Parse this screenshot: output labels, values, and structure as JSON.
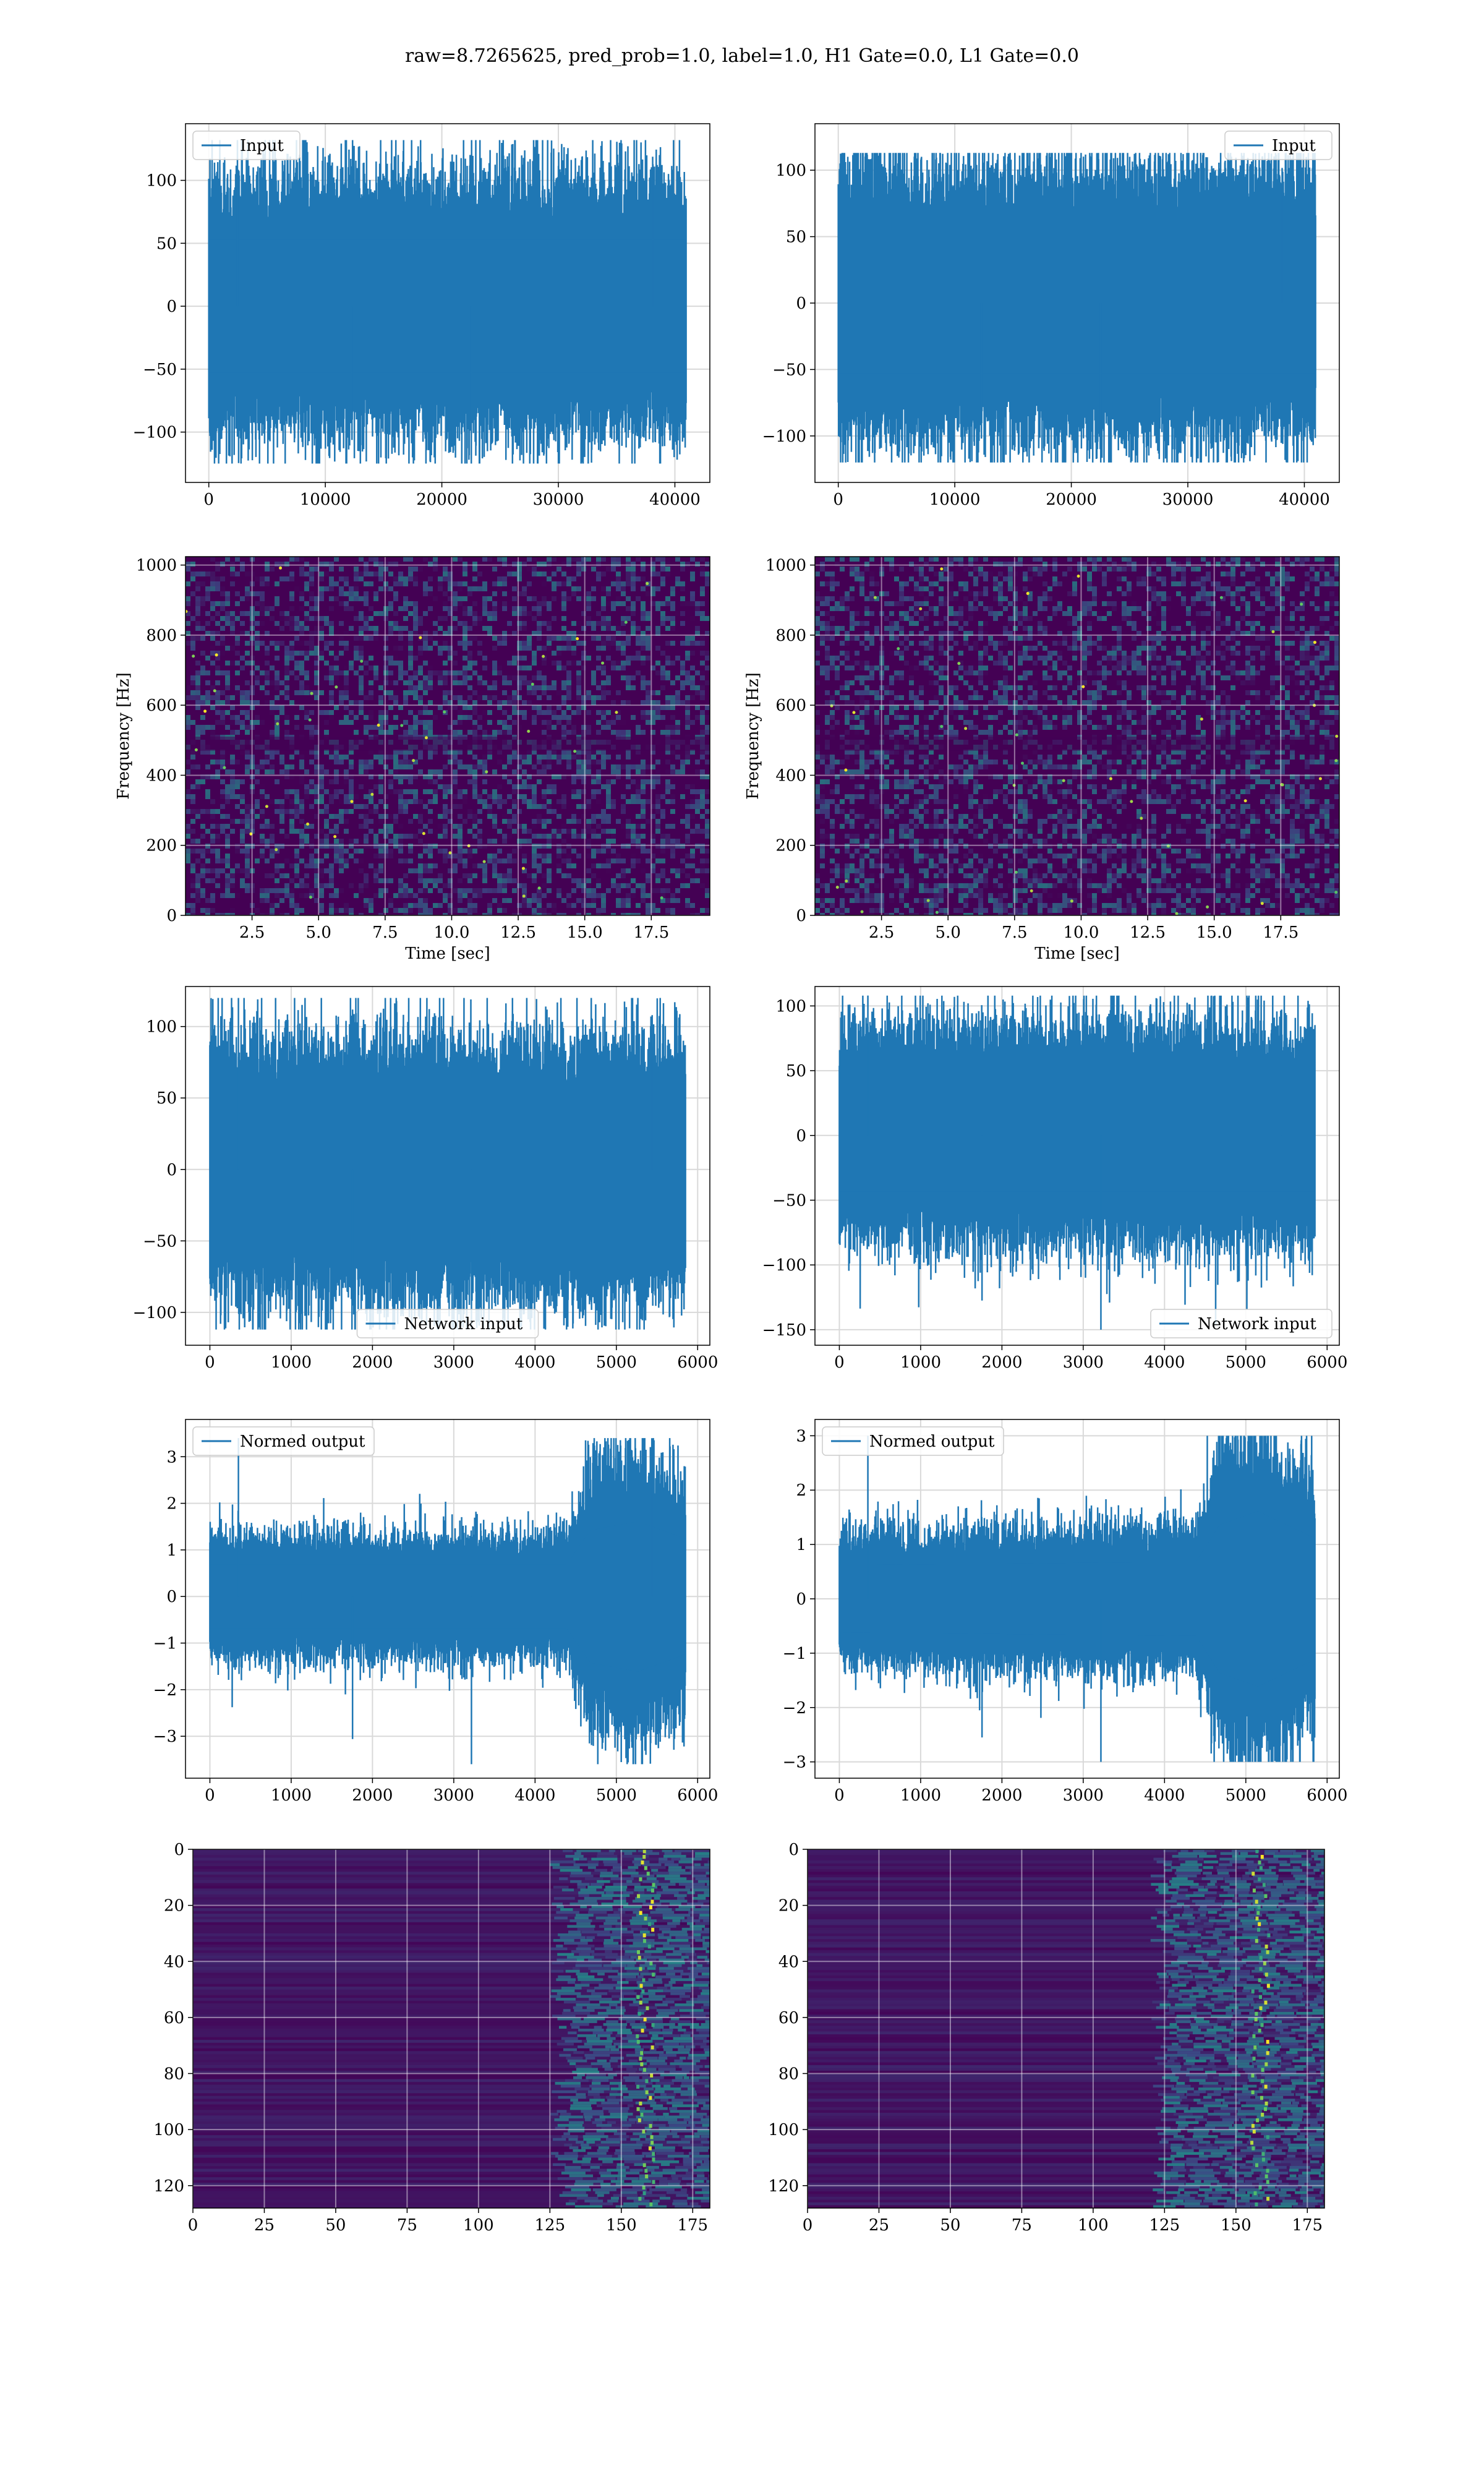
{
  "figure": {
    "title": "raw=8.7265625, pred_prob=1.0, label=1.0, H1 Gate=0.0, L1 Gate=0.0"
  },
  "colors": {
    "line": "#1f77b4",
    "grid": "#d9d9d9",
    "viridis_bg": "#440154",
    "viridis_mid": "#3b528b",
    "viridis_teal": "#21918c",
    "viridis_green": "#5ec962",
    "viridis_yellow": "#fde725"
  },
  "chart_data": [
    {
      "id": "input-h1",
      "type": "line",
      "legend": [
        "Input"
      ],
      "legend_position": "upper left",
      "xlim": [
        -2000,
        43000
      ],
      "ylim": [
        -140,
        145
      ],
      "xticks": [
        0,
        10000,
        20000,
        30000,
        40000
      ],
      "yticks": [
        -100,
        -50,
        0,
        50,
        100
      ],
      "series": [
        {
          "name": "Input",
          "x_range": [
            0,
            40960
          ],
          "amplitude_envelope": [
            [
              0,
              85
            ],
            [
              0.5,
              85
            ],
            [
              1,
              85
            ]
          ],
          "peak_min": -125,
          "peak_max": 132
        }
      ],
      "xlabel": "",
      "ylabel": "",
      "grid": true
    },
    {
      "id": "input-l1",
      "type": "line",
      "legend": [
        "Input"
      ],
      "legend_position": "upper right",
      "xlim": [
        -2000,
        43000
      ],
      "ylim": [
        -135,
        135
      ],
      "xticks": [
        0,
        10000,
        20000,
        30000,
        40000
      ],
      "yticks": [
        -100,
        -50,
        0,
        50,
        100
      ],
      "series": [
        {
          "name": "Input",
          "x_range": [
            0,
            40960
          ],
          "amplitude_envelope": [
            [
              0,
              85
            ],
            [
              0.5,
              85
            ],
            [
              1,
              85
            ]
          ],
          "peak_min": -120,
          "peak_max": 113
        }
      ],
      "xlabel": "",
      "ylabel": "",
      "grid": true
    },
    {
      "id": "spectrogram-h1",
      "type": "heatmap",
      "xlim": [
        0,
        19.7
      ],
      "ylim": [
        0,
        1024
      ],
      "xticks": [
        2.5,
        5.0,
        7.5,
        10.0,
        12.5,
        15.0,
        17.5
      ],
      "yticks": [
        0,
        200,
        400,
        600,
        800,
        1000
      ],
      "xlabel": "Time [sec]",
      "ylabel": "Frequency [Hz]",
      "colormap": "viridis",
      "grid": true
    },
    {
      "id": "spectrogram-l1",
      "type": "heatmap",
      "xlim": [
        0,
        19.7
      ],
      "ylim": [
        0,
        1024
      ],
      "xticks": [
        2.5,
        5.0,
        7.5,
        10.0,
        12.5,
        15.0,
        17.5
      ],
      "yticks": [
        0,
        200,
        400,
        600,
        800,
        1000
      ],
      "xlabel": "Time [sec]",
      "ylabel": "Frequency [Hz]",
      "colormap": "viridis",
      "grid": true
    },
    {
      "id": "network-input-h1",
      "type": "line",
      "legend": [
        "Network input"
      ],
      "legend_position": "lower center",
      "xlim": [
        -300,
        6150
      ],
      "ylim": [
        -123,
        128
      ],
      "xticks": [
        0,
        1000,
        2000,
        3000,
        4000,
        5000,
        6000
      ],
      "yticks": [
        -100,
        -50,
        0,
        50,
        100
      ],
      "series": [
        {
          "name": "Network input",
          "x_range": [
            0,
            5850
          ],
          "amplitude_envelope": [
            [
              0,
              75
            ],
            [
              0.5,
              75
            ],
            [
              1,
              75
            ]
          ],
          "peak_min": -112,
          "peak_max": 120
        }
      ],
      "xlabel": "",
      "ylabel": "",
      "grid": true
    },
    {
      "id": "network-input-l1",
      "type": "line",
      "legend": [
        "Network input"
      ],
      "legend_position": "lower right",
      "xlim": [
        -300,
        6150
      ],
      "ylim": [
        -162,
        115
      ],
      "xticks": [
        0,
        1000,
        2000,
        3000,
        4000,
        5000,
        6000
      ],
      "yticks": [
        -150,
        -100,
        -50,
        0,
        50,
        100
      ],
      "series": [
        {
          "name": "Network input",
          "x_range": [
            0,
            5850
          ],
          "amplitude_envelope": [
            [
              0,
              70
            ],
            [
              0.5,
              70
            ],
            [
              1,
              70
            ]
          ],
          "peak_min": -150,
          "peak_max": 108
        }
      ],
      "xlabel": "",
      "ylabel": "",
      "grid": true
    },
    {
      "id": "normed-output-h1",
      "type": "line",
      "legend": [
        "Normed output"
      ],
      "legend_position": "upper left",
      "xlim": [
        -300,
        6150
      ],
      "ylim": [
        -3.9,
        3.8
      ],
      "xticks": [
        0,
        1000,
        2000,
        3000,
        4000,
        5000,
        6000
      ],
      "yticks": [
        -3,
        -2,
        -1,
        0,
        1,
        2,
        3
      ],
      "series": [
        {
          "name": "Normed output",
          "x_range": [
            0,
            5850
          ],
          "amplitude_envelope": [
            [
              0,
              1.1
            ],
            [
              0.75,
              1.1
            ],
            [
              0.8,
              2.3
            ],
            [
              0.9,
              2.6
            ],
            [
              1,
              2.0
            ]
          ],
          "peak_min": -3.6,
          "peak_max": 3.4
        }
      ],
      "xlabel": "",
      "ylabel": "",
      "grid": true
    },
    {
      "id": "normed-output-l1",
      "type": "line",
      "legend": [
        "Normed output"
      ],
      "legend_position": "upper left",
      "xlim": [
        -300,
        6150
      ],
      "ylim": [
        -3.3,
        3.3
      ],
      "xticks": [
        0,
        1000,
        2000,
        3000,
        4000,
        5000,
        6000
      ],
      "yticks": [
        -3,
        -2,
        -1,
        0,
        1,
        2,
        3
      ],
      "series": [
        {
          "name": "Normed output",
          "x_range": [
            0,
            5850
          ],
          "amplitude_envelope": [
            [
              0,
              1.0
            ],
            [
              0.75,
              1.1
            ],
            [
              0.8,
              2.2
            ],
            [
              0.88,
              2.6
            ],
            [
              1,
              1.8
            ]
          ],
          "peak_min": -3.0,
          "peak_max": 3.0
        }
      ],
      "xlabel": "",
      "ylabel": "",
      "grid": true
    },
    {
      "id": "feature-map-h1",
      "type": "heatmap",
      "xlim": [
        0,
        181
      ],
      "ylim": [
        128,
        0
      ],
      "xticks": [
        0,
        25,
        50,
        75,
        100,
        125,
        150,
        175
      ],
      "yticks": [
        0,
        20,
        40,
        60,
        80,
        100,
        120
      ],
      "xlabel": "",
      "ylabel": "",
      "colormap": "viridis",
      "grid": true,
      "active_region_x": [
        125,
        181
      ],
      "hot_column_x": 158
    },
    {
      "id": "feature-map-l1",
      "type": "heatmap",
      "xlim": [
        0,
        181
      ],
      "ylim": [
        128,
        0
      ],
      "xticks": [
        0,
        25,
        50,
        75,
        100,
        125,
        150,
        175
      ],
      "yticks": [
        0,
        20,
        40,
        60,
        80,
        100,
        120
      ],
      "xlabel": "",
      "ylabel": "",
      "colormap": "viridis",
      "grid": true,
      "active_region_x": [
        120,
        181
      ],
      "hot_column_x": 158
    }
  ]
}
